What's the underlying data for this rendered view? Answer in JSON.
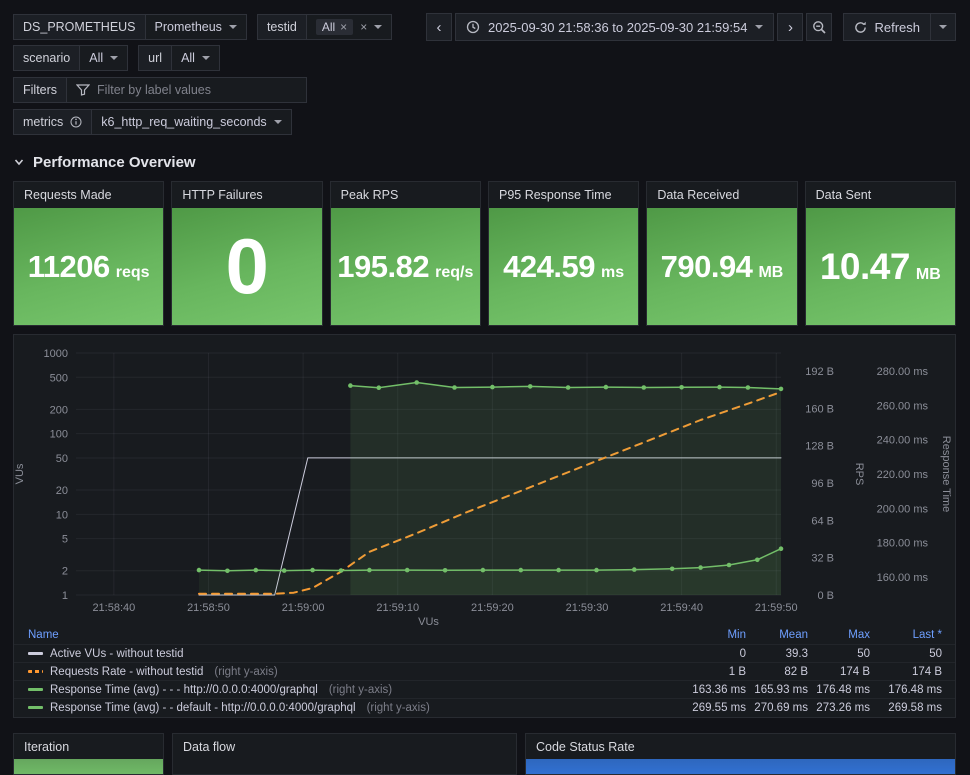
{
  "toolbar": {
    "ds": {
      "label": "DS_PROMETHEUS",
      "value": "Prometheus"
    },
    "testid": {
      "label": "testid",
      "chip": "All"
    },
    "scenario": {
      "label": "scenario",
      "value": "All"
    },
    "url": {
      "label": "url",
      "value": "All"
    },
    "filters": {
      "label": "Filters",
      "placeholder": "Filter by label values"
    },
    "metrics": {
      "label": "metrics",
      "value": "k6_http_req_waiting_seconds"
    },
    "time_range": "2025-09-30 21:58:36 to 2025-09-30 21:59:54",
    "refresh_label": "Refresh"
  },
  "section_title": "Performance Overview",
  "stats": [
    {
      "title": "Requests Made",
      "value": "11206",
      "unit": "reqs"
    },
    {
      "title": "HTTP Failures",
      "value": "0",
      "unit": ""
    },
    {
      "title": "Peak RPS",
      "value": "195.82",
      "unit": "req/s"
    },
    {
      "title": "P95 Response Time",
      "value": "424.59",
      "unit": "ms"
    },
    {
      "title": "Data Received",
      "value": "790.94",
      "unit": "MB"
    },
    {
      "title": "Data Sent",
      "value": "10.47",
      "unit": "MB"
    }
  ],
  "chart_data": {
    "type": "line",
    "title": "",
    "xlabel": "VUs",
    "x_domain_seconds": [
      0,
      74.5
    ],
    "x_tick_seconds": [
      4,
      14,
      24,
      34,
      44,
      54,
      64,
      74
    ],
    "x_ticks": [
      "21:58:40",
      "21:58:50",
      "21:59:00",
      "21:59:10",
      "21:59:20",
      "21:59:30",
      "21:59:40",
      "21:59:50"
    ],
    "axes": {
      "vus": {
        "label": "VUs",
        "scale": "log",
        "domain": [
          1,
          1000
        ],
        "ticks": [
          1,
          2,
          5,
          10,
          20,
          50,
          100,
          200,
          500,
          1000
        ]
      },
      "rps": {
        "label": "RPS",
        "domain": [
          0,
          192
        ],
        "ticks": [
          "0 B",
          "32 B",
          "64 B",
          "96 B",
          "128 B",
          "160 B",
          "192 B"
        ]
      },
      "ms": {
        "label": "Response Time",
        "domain": [
          160,
          280
        ],
        "ticks": [
          "160.00 ms",
          "180.00 ms",
          "200.00 ms",
          "220.00 ms",
          "240.00 ms",
          "260.00 ms",
          "280.00 ms"
        ]
      }
    },
    "series": [
      {
        "name": "Active VUs - without testid",
        "axis": "vus",
        "color": "#ccccdc",
        "width": 1,
        "dash": "",
        "points": false,
        "fill": 0,
        "data": [
          [
            13,
            1
          ],
          [
            21,
            1
          ],
          [
            24.5,
            50
          ],
          [
            74.5,
            50
          ]
        ]
      },
      {
        "name": "Requests Rate - without testid",
        "axis": "rps",
        "color": "#ff9830",
        "width": 2,
        "dash": "7,6",
        "points": false,
        "fill": 0,
        "data": [
          [
            13,
            1
          ],
          [
            17,
            1
          ],
          [
            21,
            1
          ],
          [
            23,
            2
          ],
          [
            25,
            6
          ],
          [
            28,
            20
          ],
          [
            31,
            37
          ],
          [
            36,
            53
          ],
          [
            41,
            70
          ],
          [
            46,
            86
          ],
          [
            51,
            102
          ],
          [
            56,
            118
          ],
          [
            61,
            134
          ],
          [
            66,
            150
          ],
          [
            71,
            164
          ],
          [
            74.5,
            174
          ]
        ]
      },
      {
        "name": "Response Time (avg) - - - http://0.0.0.0:4000/graphql",
        "axis": "ms",
        "color": "#73bf69",
        "width": 1.5,
        "dash": "",
        "points": true,
        "fill": 0.07,
        "data": [
          [
            13,
            164
          ],
          [
            16,
            163.6
          ],
          [
            19,
            164
          ],
          [
            22,
            163.7
          ],
          [
            25,
            164
          ],
          [
            28,
            163.8
          ],
          [
            31,
            164
          ],
          [
            35,
            164
          ],
          [
            39,
            163.9
          ],
          [
            43,
            164
          ],
          [
            47,
            164
          ],
          [
            51,
            164
          ],
          [
            55,
            164
          ],
          [
            59,
            164.3
          ],
          [
            63,
            164.8
          ],
          [
            66,
            165.5
          ],
          [
            69,
            167
          ],
          [
            72,
            170
          ],
          [
            74.5,
            176.5
          ]
        ]
      },
      {
        "name": "Response Time (avg) - - default - http://0.0.0.0:4000/graphql",
        "axis": "ms",
        "color": "#73bf69",
        "width": 1.5,
        "dash": "",
        "points": true,
        "fill": 0.12,
        "data": [
          [
            29,
            271.5
          ],
          [
            32,
            270.3
          ],
          [
            36,
            273.3
          ],
          [
            40,
            270.4
          ],
          [
            44,
            270.6
          ],
          [
            48,
            271
          ],
          [
            52,
            270.4
          ],
          [
            56,
            270.6
          ],
          [
            60,
            270.4
          ],
          [
            64,
            270.5
          ],
          [
            68,
            270.6
          ],
          [
            71,
            270.4
          ],
          [
            74.5,
            269.6
          ]
        ]
      }
    ]
  },
  "legend": {
    "columns": [
      "Name",
      "Min",
      "Mean",
      "Max",
      "Last *"
    ],
    "rows": [
      {
        "name": "Active VUs - without testid",
        "suffix": "",
        "color": "#ccccdc",
        "style": "solid",
        "min": "0",
        "mean": "39.3",
        "max": "50",
        "last": "50"
      },
      {
        "name": "Requests Rate - without testid",
        "suffix": "(right y-axis)",
        "color": "#ff9830",
        "style": "dashed",
        "min": "1 B",
        "mean": "82 B",
        "max": "174 B",
        "last": "174 B"
      },
      {
        "name": "Response Time (avg) - - - http://0.0.0.0:4000/graphql",
        "suffix": "(right y-axis)",
        "color": "#73bf69",
        "style": "solid",
        "min": "163.36 ms",
        "mean": "165.93 ms",
        "max": "176.48 ms",
        "last": "176.48 ms"
      },
      {
        "name": "Response Time (avg) - - default - http://0.0.0.0:4000/graphql",
        "suffix": "(right y-axis)",
        "color": "#73bf69",
        "style": "solid",
        "min": "269.55 ms",
        "mean": "270.69 ms",
        "max": "273.26 ms",
        "last": "269.58 ms"
      }
    ]
  },
  "bottom_panels": [
    {
      "title": "Iteration",
      "bar_color": "#73bf69"
    },
    {
      "title": "Data flow",
      "bar_color": ""
    },
    {
      "title": "Code Status Rate",
      "bar_color": "#3274d9"
    }
  ],
  "colors": {
    "green": "#73bf69",
    "orange": "#ff9830",
    "blue": "#3274d9",
    "gray_series": "#ccccdc",
    "link": "#6e9fff",
    "panel_bg": "#181b1f",
    "page_bg": "#111217"
  }
}
